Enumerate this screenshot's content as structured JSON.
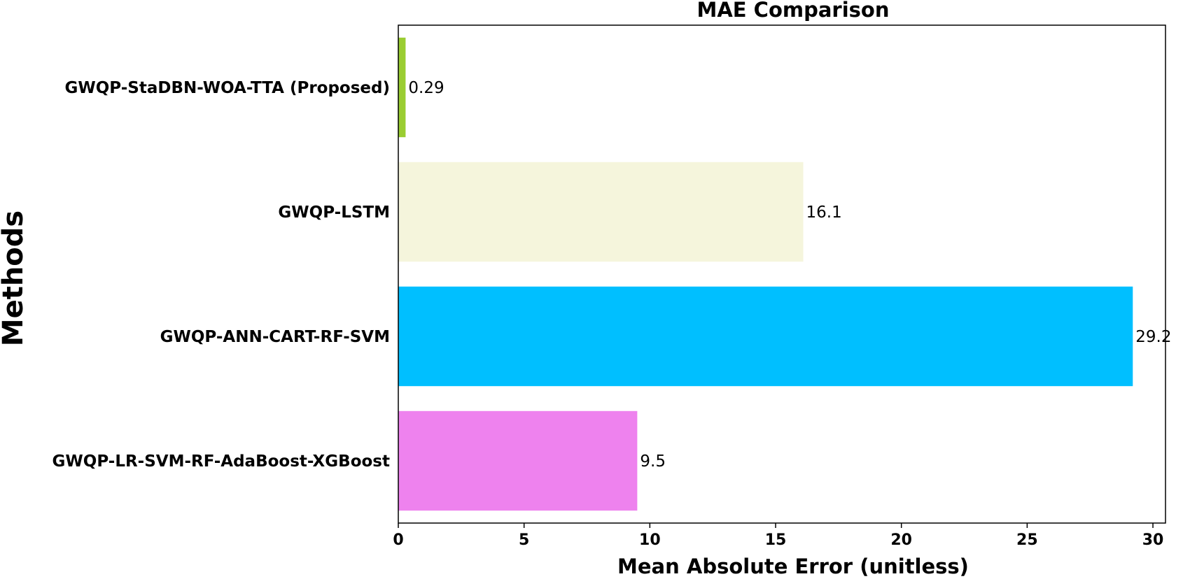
{
  "chart_data": {
    "type": "bar",
    "orientation": "horizontal",
    "title": "MAE Comparison",
    "xlabel": "Mean Absolute Error (unitless)",
    "ylabel": "Methods",
    "categories": [
      "GWQP-StaDBN-WOA-TTA (Proposed)",
      "GWQP-LSTM",
      "GWQP-ANN-CART-RF-SVM",
      "GWQP-LR-SVM-RF-AdaBoost-XGBoost"
    ],
    "values": [
      0.29,
      16.1,
      29.2,
      9.5
    ],
    "value_labels": [
      "0.29",
      "16.1",
      "29.2",
      "9.5"
    ],
    "colors": [
      "#9acd32",
      "#f5f5dc",
      "#00bfff",
      "#ee82ee"
    ],
    "xlim": [
      0,
      30.5
    ],
    "xticks": [
      0,
      5,
      10,
      15,
      20,
      25,
      30
    ],
    "grid": false,
    "legend": "none"
  }
}
